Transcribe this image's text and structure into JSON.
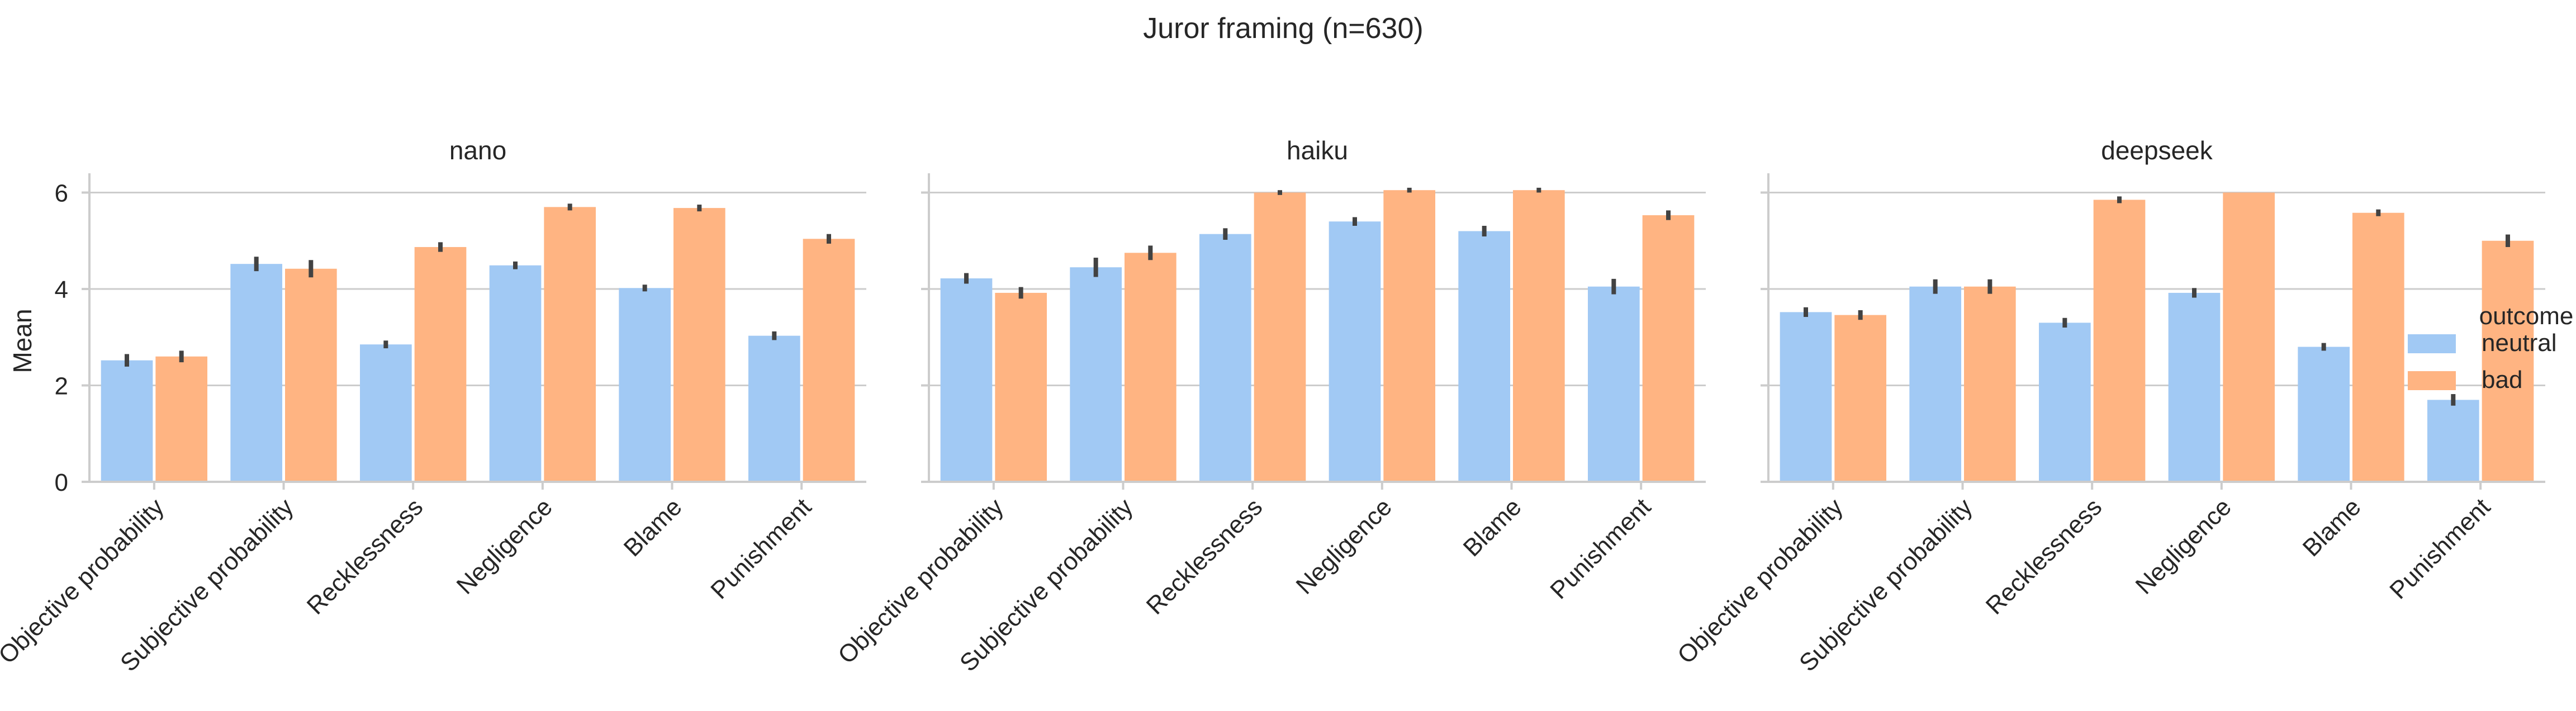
{
  "chart_data": {
    "type": "bar",
    "title": "Juror framing (n=630)",
    "ylabel": "Mean",
    "xlabel": "",
    "ylim": [
      0,
      6.4
    ],
    "yticks": [
      0,
      2,
      4,
      6
    ],
    "grid": "horizontal",
    "categories": [
      "Objective probability",
      "Subjective probability",
      "Recklessness",
      "Negligence",
      "Blame",
      "Punishment"
    ],
    "legend": {
      "title": "outcome",
      "placement": "right",
      "entries": [
        {
          "name": "neutral",
          "color": "#a1c9f4"
        },
        {
          "name": "bad",
          "color": "#ffb482"
        }
      ]
    },
    "panels": [
      {
        "title": "nano",
        "series": [
          {
            "name": "neutral",
            "values": [
              2.52,
              4.52,
              2.85,
              4.49,
              4.02,
              3.03
            ],
            "errors": [
              0.13,
              0.15,
              0.08,
              0.08,
              0.07,
              0.09
            ]
          },
          {
            "name": "bad",
            "values": [
              2.6,
              4.42,
              4.87,
              5.7,
              5.68,
              5.04
            ],
            "errors": [
              0.12,
              0.18,
              0.1,
              0.07,
              0.07,
              0.1
            ]
          }
        ]
      },
      {
        "title": "haiku",
        "series": [
          {
            "name": "neutral",
            "values": [
              4.22,
              4.45,
              5.14,
              5.4,
              5.2,
              4.05
            ],
            "errors": [
              0.11,
              0.2,
              0.12,
              0.09,
              0.11,
              0.16
            ]
          },
          {
            "name": "bad",
            "values": [
              3.92,
              4.75,
              6.0,
              6.05,
              6.05,
              5.53
            ],
            "errors": [
              0.12,
              0.15,
              0.05,
              0.05,
              0.05,
              0.1
            ]
          }
        ]
      },
      {
        "title": "deepseek",
        "series": [
          {
            "name": "neutral",
            "values": [
              3.52,
              4.05,
              3.3,
              3.92,
              2.8,
              1.7
            ],
            "errors": [
              0.1,
              0.15,
              0.1,
              0.1,
              0.08,
              0.12
            ]
          },
          {
            "name": "bad",
            "values": [
              3.46,
              4.05,
              5.85,
              6.0,
              5.58,
              5.0
            ],
            "errors": [
              0.1,
              0.15,
              0.07,
              0.0,
              0.07,
              0.13
            ]
          }
        ]
      }
    ]
  }
}
